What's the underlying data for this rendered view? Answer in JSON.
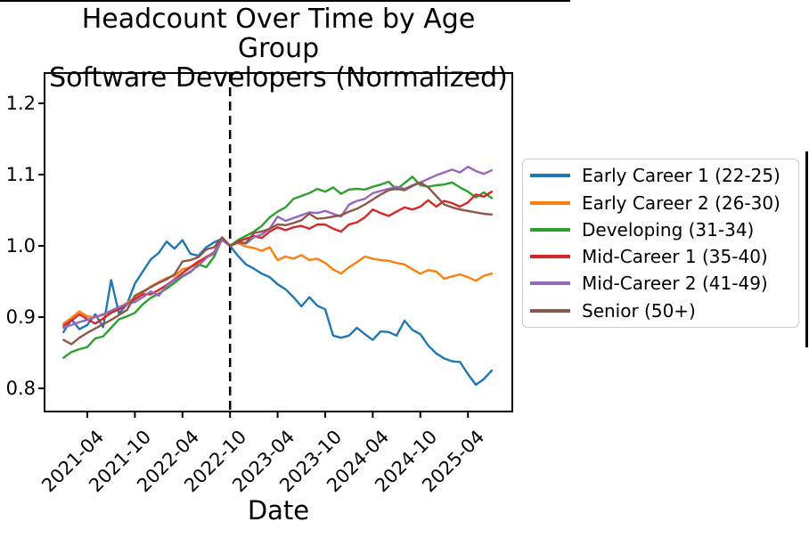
{
  "chart_data": {
    "type": "line",
    "title": "Headcount Over Time by Age Group",
    "subtitle": "Software Developers (Normalized)",
    "xlabel": "Date",
    "ylabel": "",
    "grid": false,
    "legend_position": "right",
    "ylim": [
      0.77,
      1.24
    ],
    "yticks": [
      "0.8",
      "0.9",
      "1.0",
      "1.1",
      "1.2"
    ],
    "xticks": [
      "2021-04",
      "2021-10",
      "2022-04",
      "2022-10",
      "2023-04",
      "2023-10",
      "2024-04",
      "2024-10",
      "2025-04"
    ],
    "vline": {
      "x": "2022-10",
      "style": "dashed",
      "color": "#000000"
    },
    "x": [
      "2021-01",
      "2021-02",
      "2021-03",
      "2021-04",
      "2021-05",
      "2021-06",
      "2021-07",
      "2021-08",
      "2021-09",
      "2021-10",
      "2021-11",
      "2021-12",
      "2022-01",
      "2022-02",
      "2022-03",
      "2022-04",
      "2022-05",
      "2022-06",
      "2022-07",
      "2022-08",
      "2022-09",
      "2022-10",
      "2022-11",
      "2022-12",
      "2023-01",
      "2023-02",
      "2023-03",
      "2023-04",
      "2023-05",
      "2023-06",
      "2023-07",
      "2023-08",
      "2023-09",
      "2023-10",
      "2023-11",
      "2023-12",
      "2024-01",
      "2024-02",
      "2024-03",
      "2024-04",
      "2024-05",
      "2024-06",
      "2024-07",
      "2024-08",
      "2024-09",
      "2024-10",
      "2024-11",
      "2024-12",
      "2025-01",
      "2025-02",
      "2025-03",
      "2025-04",
      "2025-05",
      "2025-06",
      "2025-07"
    ],
    "series": [
      {
        "name": "Early Career 1 (22-25)",
        "color": "#1f77b4",
        "values": [
          0.879,
          0.897,
          0.883,
          0.889,
          0.904,
          0.886,
          0.952,
          0.905,
          0.918,
          0.947,
          0.964,
          0.981,
          0.99,
          1.006,
          0.996,
          1.008,
          0.989,
          0.986,
          0.998,
          1.005,
          1.01,
          1.0,
          0.986,
          0.974,
          0.968,
          0.961,
          0.956,
          0.946,
          0.939,
          0.928,
          0.915,
          0.928,
          0.916,
          0.911,
          0.874,
          0.871,
          0.874,
          0.885,
          0.876,
          0.868,
          0.88,
          0.879,
          0.874,
          0.895,
          0.882,
          0.876,
          0.86,
          0.849,
          0.842,
          0.838,
          0.837,
          0.82,
          0.805,
          0.813,
          0.825
        ]
      },
      {
        "name": "Early Career 2 (26-30)",
        "color": "#ff7f0e",
        "values": [
          0.891,
          0.899,
          0.908,
          0.901,
          0.9,
          0.903,
          0.908,
          0.912,
          0.92,
          0.927,
          0.934,
          0.943,
          0.949,
          0.955,
          0.958,
          0.967,
          0.97,
          0.975,
          0.985,
          0.988,
          1.009,
          1.0,
          1.004,
          0.999,
          0.997,
          0.993,
          0.998,
          0.98,
          0.985,
          0.982,
          0.987,
          0.98,
          0.982,
          0.976,
          0.967,
          0.961,
          0.97,
          0.977,
          0.985,
          0.982,
          0.98,
          0.979,
          0.976,
          0.974,
          0.967,
          0.961,
          0.966,
          0.964,
          0.954,
          0.957,
          0.96,
          0.956,
          0.951,
          0.958,
          0.961
        ]
      },
      {
        "name": "Developing (31-34)",
        "color": "#2ca02c",
        "values": [
          0.843,
          0.851,
          0.855,
          0.858,
          0.87,
          0.873,
          0.885,
          0.897,
          0.901,
          0.906,
          0.918,
          0.927,
          0.933,
          0.94,
          0.948,
          0.957,
          0.963,
          0.974,
          0.97,
          0.985,
          1.01,
          1.0,
          1.008,
          1.014,
          1.02,
          1.028,
          1.04,
          1.048,
          1.054,
          1.066,
          1.07,
          1.074,
          1.08,
          1.076,
          1.082,
          1.073,
          1.079,
          1.08,
          1.079,
          1.083,
          1.086,
          1.09,
          1.079,
          1.088,
          1.097,
          1.085,
          1.083,
          1.085,
          1.086,
          1.089,
          1.082,
          1.076,
          1.068,
          1.075,
          1.067
        ]
      },
      {
        "name": "Mid-Career 1 (35-40)",
        "color": "#d62728",
        "values": [
          0.888,
          0.895,
          0.904,
          0.897,
          0.891,
          0.898,
          0.906,
          0.911,
          0.918,
          0.925,
          0.932,
          0.932,
          0.938,
          0.945,
          0.953,
          0.962,
          0.97,
          0.978,
          0.984,
          0.991,
          1.011,
          1.0,
          1.006,
          1.01,
          1.014,
          1.011,
          1.02,
          1.026,
          1.022,
          1.026,
          1.028,
          1.024,
          1.03,
          1.03,
          1.024,
          1.02,
          1.03,
          1.033,
          1.04,
          1.051,
          1.046,
          1.042,
          1.048,
          1.054,
          1.051,
          1.055,
          1.064,
          1.055,
          1.063,
          1.06,
          1.055,
          1.061,
          1.072,
          1.069,
          1.076
        ]
      },
      {
        "name": "Mid-Career 2 (41-49)",
        "color": "#9467bd",
        "values": [
          0.885,
          0.889,
          0.893,
          0.896,
          0.9,
          0.904,
          0.909,
          0.914,
          0.919,
          0.921,
          0.928,
          0.936,
          0.93,
          0.944,
          0.952,
          0.958,
          0.964,
          0.972,
          0.983,
          0.99,
          1.008,
          1.0,
          1.005,
          1.003,
          1.012,
          1.016,
          1.024,
          1.041,
          1.035,
          1.039,
          1.043,
          1.047,
          1.046,
          1.049,
          1.045,
          1.041,
          1.058,
          1.063,
          1.066,
          1.074,
          1.077,
          1.08,
          1.083,
          1.08,
          1.085,
          1.089,
          1.094,
          1.099,
          1.103,
          1.107,
          1.103,
          1.111,
          1.105,
          1.101,
          1.106
        ]
      },
      {
        "name": "Senior (50+)",
        "color": "#8c564b",
        "values": [
          0.868,
          0.862,
          0.871,
          0.878,
          0.884,
          0.89,
          0.896,
          0.903,
          0.91,
          0.93,
          0.936,
          0.942,
          0.948,
          0.953,
          0.96,
          0.978,
          0.98,
          0.984,
          0.995,
          0.998,
          1.012,
          1.0,
          1.005,
          1.004,
          1.018,
          1.02,
          1.024,
          1.03,
          1.029,
          1.032,
          1.036,
          1.045,
          1.038,
          1.039,
          1.041,
          1.043,
          1.048,
          1.052,
          1.058,
          1.065,
          1.072,
          1.078,
          1.08,
          1.078,
          1.084,
          1.089,
          1.082,
          1.07,
          1.058,
          1.054,
          1.051,
          1.049,
          1.047,
          1.045,
          1.044
        ]
      }
    ]
  }
}
